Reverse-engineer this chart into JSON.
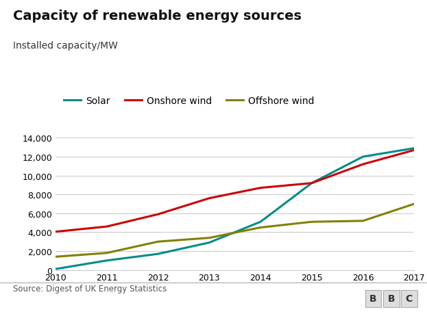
{
  "title": "Capacity of renewable energy sources",
  "subtitle": "Installed capacity/MW",
  "source": "Source: Digest of UK Energy Statistics",
  "years": [
    2010,
    2011,
    2012,
    2013,
    2014,
    2015,
    2016,
    2017
  ],
  "solar": [
    100,
    1000,
    1700,
    2900,
    5100,
    9200,
    12000,
    12900
  ],
  "onshore_wind": [
    4050,
    4600,
    5900,
    7600,
    8700,
    9200,
    11200,
    12700
  ],
  "offshore_wind": [
    1400,
    1800,
    3000,
    3400,
    4500,
    5100,
    5200,
    7000
  ],
  "solar_color": "#008B8B",
  "onshore_color": "#cc0000",
  "offshore_color": "#808000",
  "background_color": "#ffffff",
  "grid_color": "#cccccc",
  "separator_color": "#aaaaaa",
  "ylim": [
    0,
    14000
  ],
  "yticks": [
    0,
    2000,
    4000,
    6000,
    8000,
    10000,
    12000,
    14000
  ],
  "title_fontsize": 14,
  "subtitle_fontsize": 10,
  "legend_fontsize": 10,
  "tick_fontsize": 9,
  "line_width": 2.2
}
